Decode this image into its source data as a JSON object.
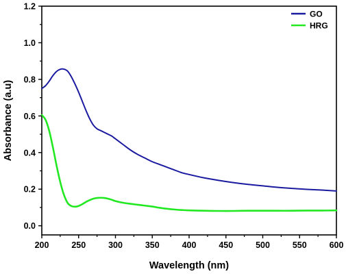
{
  "chart_data": {
    "type": "line",
    "title": "",
    "xlabel": "Wavelength (nm)",
    "ylabel": "Absorbance (a.u)",
    "xlim": [
      200,
      600
    ],
    "ylim": [
      -0.05,
      1.2
    ],
    "xticks": [
      200,
      250,
      300,
      350,
      400,
      450,
      500,
      550,
      600
    ],
    "yticks": [
      0.0,
      0.2,
      0.4,
      0.6,
      0.8,
      1.0,
      1.2
    ],
    "xtick_labels": [
      "200",
      "250",
      "300",
      "350",
      "400",
      "450",
      "500",
      "550",
      "600"
    ],
    "ytick_labels": [
      "0.0",
      "0.2",
      "0.4",
      "0.6",
      "0.8",
      "1.0",
      "1.2"
    ],
    "grid": false,
    "legend_position": "top-right",
    "x": [
      200,
      205,
      210,
      215,
      220,
      225,
      230,
      235,
      240,
      245,
      250,
      255,
      260,
      265,
      270,
      275,
      280,
      285,
      290,
      295,
      300,
      310,
      320,
      330,
      340,
      350,
      360,
      370,
      380,
      390,
      400,
      420,
      440,
      460,
      480,
      500,
      520,
      540,
      560,
      580,
      600
    ],
    "series": [
      {
        "name": "GO",
        "color": "#1a1aa0",
        "values": [
          0.75,
          0.765,
          0.79,
          0.82,
          0.843,
          0.855,
          0.856,
          0.845,
          0.815,
          0.775,
          0.73,
          0.68,
          0.63,
          0.585,
          0.55,
          0.53,
          0.52,
          0.51,
          0.5,
          0.49,
          0.475,
          0.445,
          0.415,
          0.39,
          0.37,
          0.35,
          0.335,
          0.32,
          0.305,
          0.29,
          0.28,
          0.262,
          0.248,
          0.236,
          0.226,
          0.218,
          0.21,
          0.204,
          0.199,
          0.195,
          0.19
        ]
      },
      {
        "name": "HRG",
        "color": "#22e822",
        "values": [
          0.605,
          0.58,
          0.52,
          0.43,
          0.33,
          0.24,
          0.17,
          0.125,
          0.108,
          0.104,
          0.108,
          0.118,
          0.13,
          0.14,
          0.148,
          0.152,
          0.153,
          0.152,
          0.148,
          0.142,
          0.135,
          0.126,
          0.12,
          0.115,
          0.11,
          0.105,
          0.098,
          0.093,
          0.089,
          0.086,
          0.084,
          0.082,
          0.081,
          0.081,
          0.082,
          0.082,
          0.082,
          0.082,
          0.083,
          0.083,
          0.084
        ]
      }
    ]
  }
}
